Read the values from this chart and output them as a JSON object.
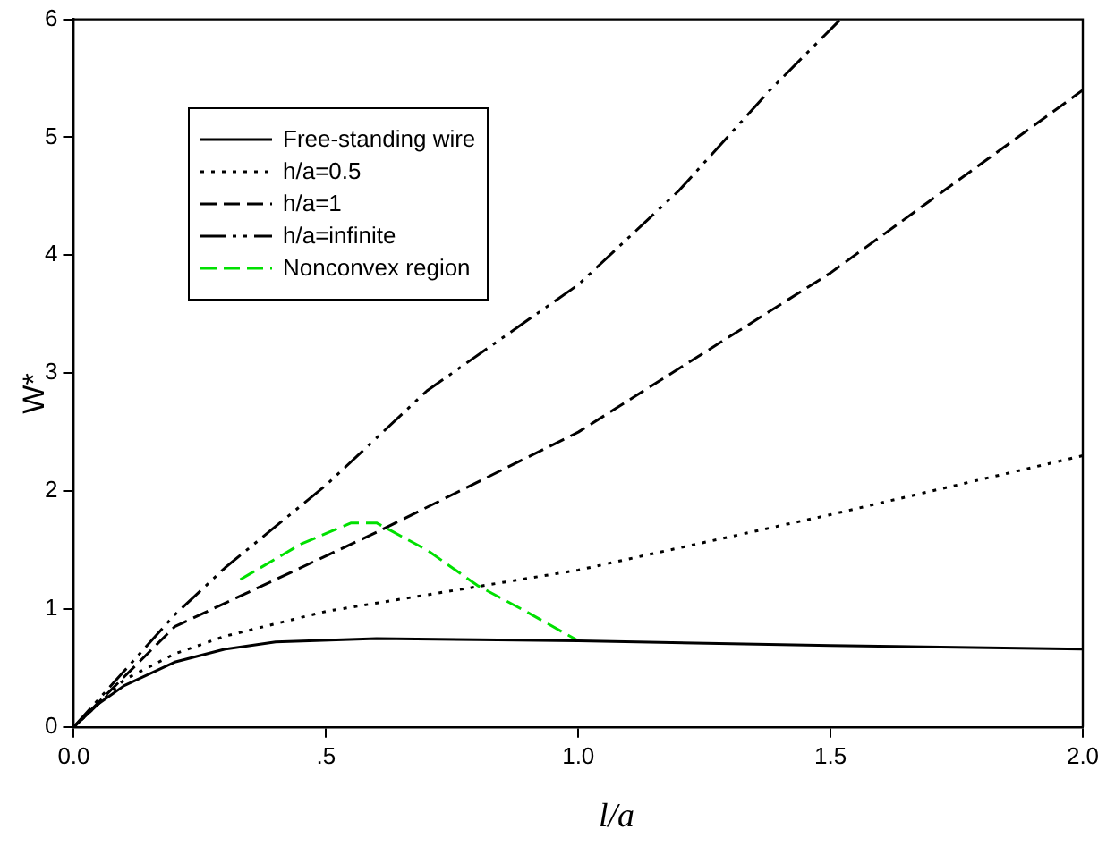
{
  "chart_data": {
    "type": "line",
    "xlabel": "l/a",
    "ylabel": "W*",
    "xlim": [
      0,
      2
    ],
    "xticks": [
      {
        "value": 0,
        "label": "0.0"
      },
      {
        "value": 0.5,
        "label": ".5"
      },
      {
        "value": 1,
        "label": "1.0"
      },
      {
        "value": 1.5,
        "label": "1.5"
      },
      {
        "value": 2,
        "label": "2.0"
      }
    ],
    "ylim": [
      0,
      6
    ],
    "yticks": [
      0,
      1,
      2,
      3,
      4,
      5,
      6
    ],
    "grid": false,
    "legend": "top left",
    "marker": "none",
    "series": [
      {
        "name": "Free-standing wire",
        "color": "#000000",
        "line_style": "solid",
        "x": [
          0,
          0.05,
          0.1,
          0.2,
          0.3,
          0.4,
          0.6,
          0.8,
          1.0,
          1.5,
          2.0
        ],
        "values": [
          0,
          0.2,
          0.35,
          0.55,
          0.66,
          0.72,
          0.75,
          0.74,
          0.73,
          0.69,
          0.66
        ]
      },
      {
        "name": "h/a=0.5",
        "color": "#000000",
        "line_style": "dotted",
        "x": [
          0,
          0.1,
          0.2,
          0.3,
          0.5,
          1.0,
          1.5,
          2.0
        ],
        "values": [
          0,
          0.4,
          0.62,
          0.77,
          0.98,
          1.33,
          1.8,
          2.3
        ]
      },
      {
        "name": "h/a=1",
        "color": "#000000",
        "line_style": "dashed",
        "x": [
          0,
          0.2,
          0.5,
          0.6,
          1.0,
          1.5,
          2.0
        ],
        "values": [
          0,
          0.85,
          1.45,
          1.65,
          2.5,
          3.85,
          5.4
        ]
      },
      {
        "name": "h/a=infinite",
        "color": "#000000",
        "line_style": "dashdot",
        "x": [
          0,
          0.2,
          0.3,
          0.5,
          0.7,
          1.0,
          1.2,
          1.38,
          1.52
        ],
        "values": [
          0,
          0.95,
          1.35,
          2.05,
          2.85,
          3.75,
          4.55,
          5.4,
          6.0
        ]
      },
      {
        "name": "Nonconvex region",
        "color": "#00e000",
        "line_style": "dashed",
        "x": [
          0.33,
          0.45,
          0.55,
          0.6,
          0.7,
          0.8,
          0.9,
          1.0
        ],
        "values": [
          1.25,
          1.55,
          1.73,
          1.73,
          1.5,
          1.2,
          0.97,
          0.73
        ]
      }
    ]
  }
}
